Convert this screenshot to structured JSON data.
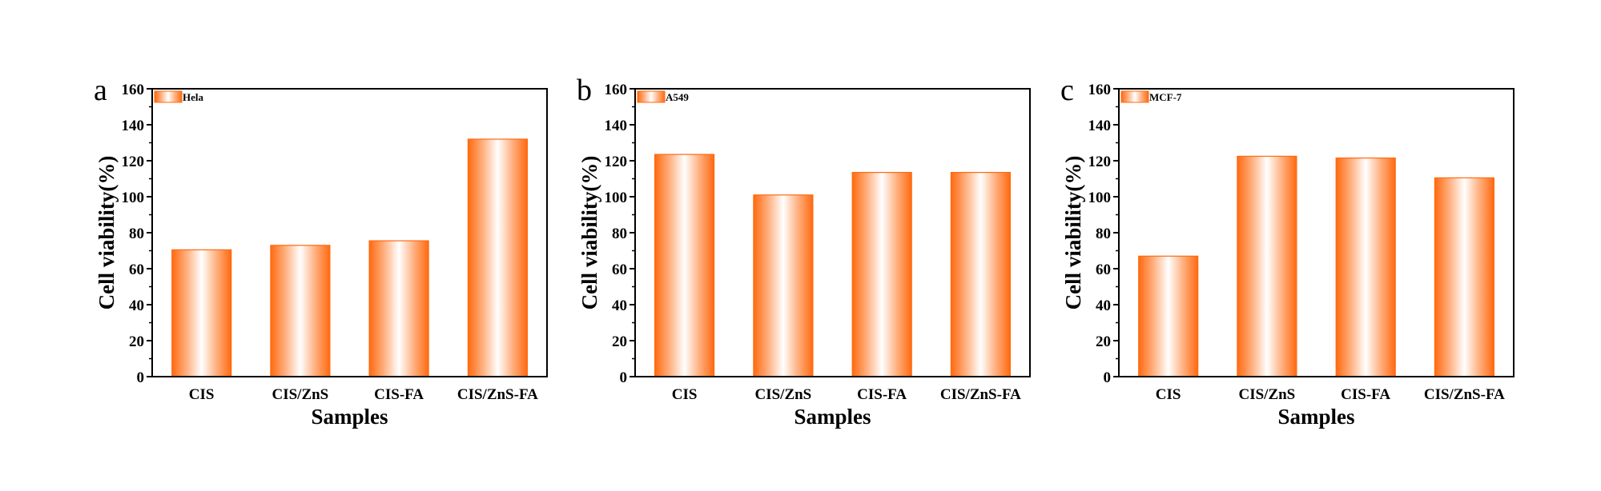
{
  "chart_data": [
    {
      "type": "bar",
      "panel_label": "a",
      "legend": "Hela",
      "categories": [
        "CIS",
        "CIS/ZnS",
        "CIS-FA",
        "CIS/ZnS-FA"
      ],
      "values": [
        70.5,
        73,
        75.5,
        132
      ],
      "xlabel": "Samples",
      "ylabel": "Cell viability(%)",
      "ylim": [
        0,
        160
      ],
      "yticks": [
        0,
        20,
        40,
        60,
        80,
        100,
        120,
        140,
        160
      ],
      "grid": false,
      "legend_position": "top-left"
    },
    {
      "type": "bar",
      "panel_label": "b",
      "legend": "A549",
      "categories": [
        "CIS",
        "CIS/ZnS",
        "CIS-FA",
        "CIS/ZnS-FA"
      ],
      "values": [
        123.5,
        101,
        113.5,
        113.5
      ],
      "xlabel": "Samples",
      "ylabel": "Cell viability(%)",
      "ylim": [
        0,
        160
      ],
      "yticks": [
        0,
        20,
        40,
        60,
        80,
        100,
        120,
        140,
        160
      ],
      "grid": false,
      "legend_position": "top-left"
    },
    {
      "type": "bar",
      "panel_label": "c",
      "legend": "MCF-7",
      "categories": [
        "CIS",
        "CIS/ZnS",
        "CIS-FA",
        "CIS/ZnS-FA"
      ],
      "values": [
        67,
        122.5,
        121.5,
        110.5
      ],
      "xlabel": "Samples",
      "ylabel": "Cell viability(%)",
      "ylim": [
        0,
        160
      ],
      "yticks": [
        0,
        20,
        40,
        60,
        80,
        100,
        120,
        140,
        160
      ],
      "grid": false,
      "legend_position": "top-left"
    }
  ],
  "colors": {
    "bar_edge": "#FF6A10",
    "bar_gradient": [
      "#FF6A10",
      "#FFB080",
      "#FFFFFF",
      "#FFB080",
      "#FF6A10"
    ],
    "axis": "#000000"
  }
}
